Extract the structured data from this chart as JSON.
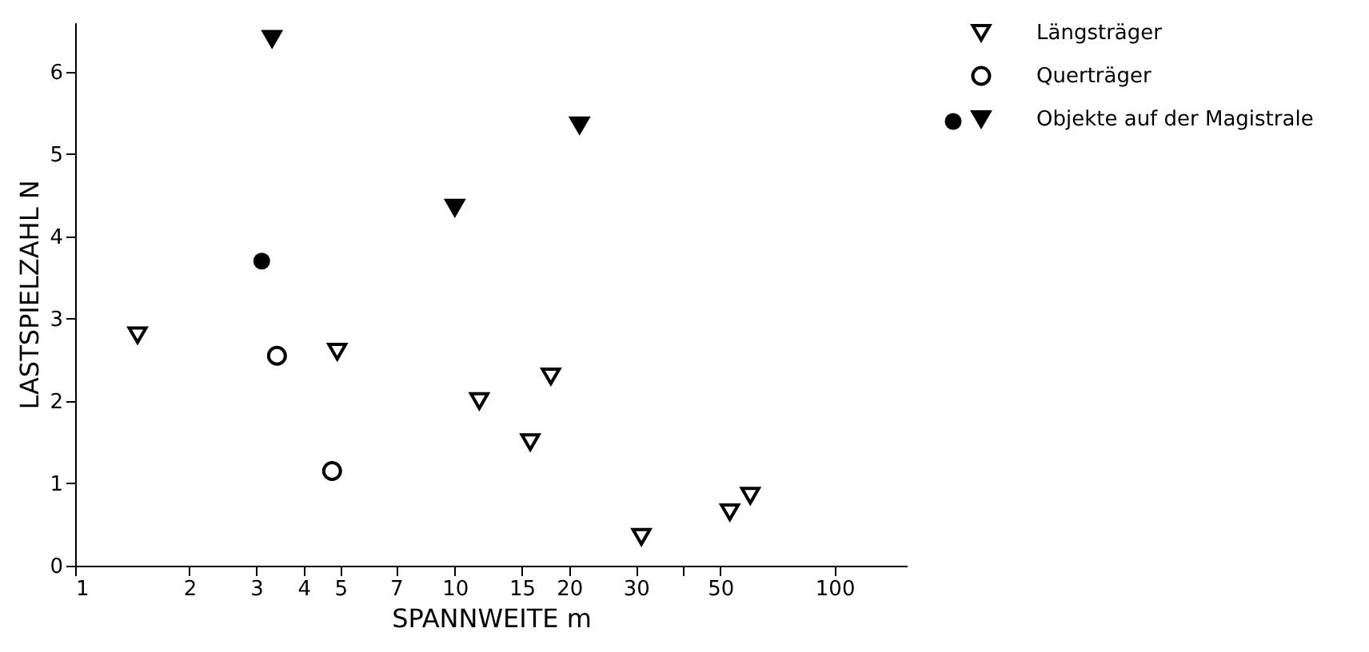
{
  "chart_data": {
    "type": "scatter",
    "xlabel": "SPANNWEITE m",
    "ylabel": "LASTSPIELZAHL  N",
    "log": "x",
    "xlim": [
      1,
      155
    ],
    "ylim": [
      0,
      6.6
    ],
    "xticks": [
      1,
      2,
      3,
      4,
      5,
      7,
      10,
      15,
      20,
      30,
      {
        "value": 40,
        "label": null
      },
      50,
      100
    ],
    "yticks": [
      0,
      1,
      2,
      3,
      4,
      5,
      6
    ],
    "grid": false,
    "legend": "top right",
    "series": [
      {
        "name": "Längsträger",
        "color": "#000000",
        "marker": "triangle-open",
        "x": [
          1.46,
          4.9,
          11.6,
          15.8,
          17.9,
          31,
          53,
          60
        ],
        "values": [
          2.8,
          2.6,
          2.0,
          1.5,
          2.3,
          0.35,
          0.65,
          0.85
        ]
      },
      {
        "name": "Querträger",
        "color": "#000000",
        "marker": "circle-open",
        "x": [
          3.4,
          4.75
        ],
        "values": [
          2.55,
          1.15
        ]
      },
      {
        "name": "Objekte auf der Magistrale",
        "color": "#000000",
        "marker": "triangle",
        "x": [
          3.3,
          10,
          21.3
        ],
        "values": [
          6.4,
          4.35,
          5.35
        ]
      },
      {
        "color": "#000000",
        "marker": "circle",
        "x": [
          3.1
        ],
        "values": [
          3.7
        ]
      }
    ]
  }
}
